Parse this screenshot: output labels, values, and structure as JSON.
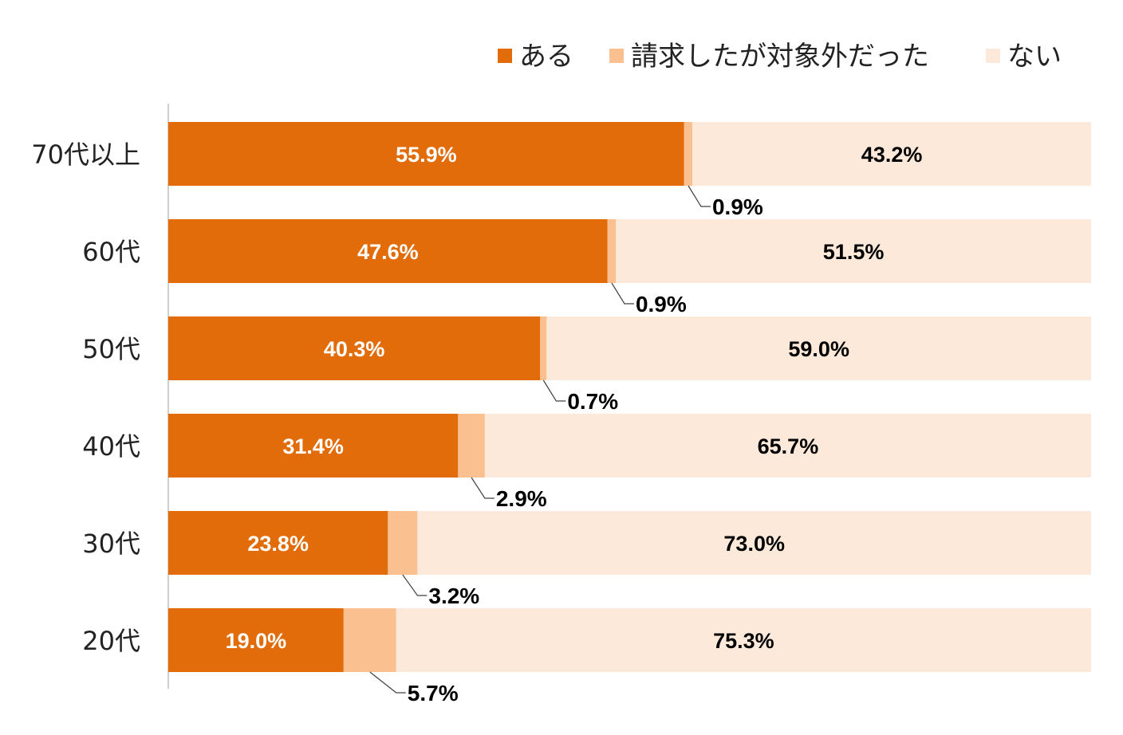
{
  "chart_data": {
    "type": "bar",
    "orientation": "horizontal",
    "stacked": true,
    "percent": true,
    "xlim": [
      0,
      100
    ],
    "legend_position": "top-right",
    "categories": [
      "70代以上",
      "60代",
      "50代",
      "40代",
      "30代",
      "20代"
    ],
    "series": [
      {
        "name": "ある",
        "color": "#E36C0A",
        "values": [
          55.9,
          47.6,
          40.3,
          31.4,
          23.8,
          19.0
        ],
        "labels": [
          "55.9%",
          "47.6%",
          "40.3%",
          "31.4%",
          "23.8%",
          "19.0%"
        ],
        "label_color": "#ffffff"
      },
      {
        "name": "請求したが対象外だった",
        "color": "#FAC090",
        "values": [
          0.9,
          0.9,
          0.7,
          2.9,
          3.2,
          5.7
        ],
        "labels": [
          "0.9%",
          "0.9%",
          "0.7%",
          "2.9%",
          "3.2%",
          "5.7%"
        ],
        "label_color": "#000000"
      },
      {
        "name": "ない",
        "color": "#FDE9D9",
        "values": [
          43.2,
          51.5,
          59.0,
          65.7,
          73.0,
          75.3
        ],
        "labels": [
          "43.2%",
          "51.5%",
          "59.0%",
          "65.7%",
          "73.0%",
          "75.3%"
        ],
        "label_color": "#000000"
      }
    ]
  }
}
